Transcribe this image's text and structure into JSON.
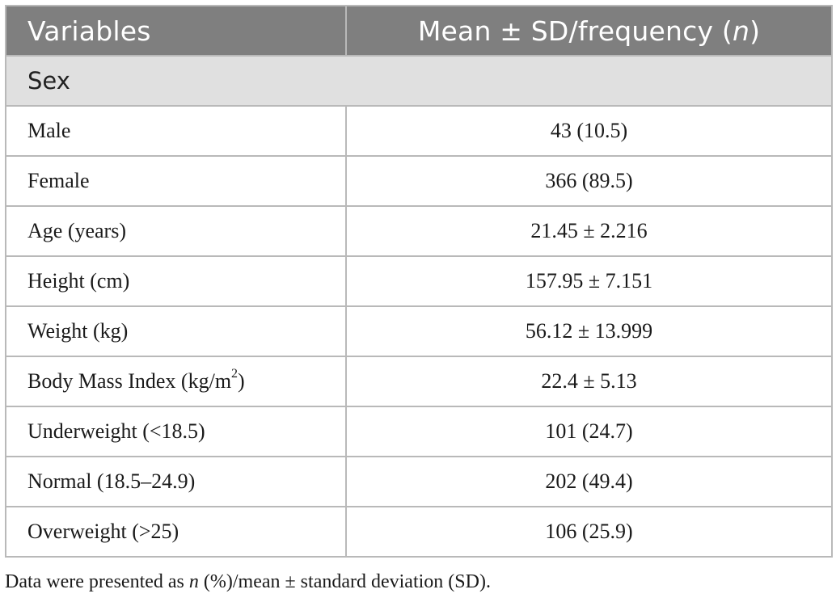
{
  "table": {
    "header": {
      "variables": "Variables",
      "stat_prefix": "Mean ± SD/frequency (",
      "stat_n": "n",
      "stat_suffix": ")"
    },
    "section_sex": "Sex",
    "rows": [
      {
        "label": "Male",
        "value": "43 (10.5)"
      },
      {
        "label": "Female",
        "value": "366 (89.5)"
      },
      {
        "label": "Age (years)",
        "value": "21.45 ± 2.216"
      },
      {
        "label": "Height (cm)",
        "value": "157.95 ± 7.151"
      },
      {
        "label": "Weight (kg)",
        "value": "56.12 ± 13.999"
      },
      {
        "label_prefix": "Body Mass Index (kg/m",
        "label_sup": "2",
        "label_suffix": ")",
        "value": "22.4 ± 5.13"
      },
      {
        "label": "Underweight (<18.5)",
        "value": "101 (24.7)"
      },
      {
        "label": "Normal (18.5–24.9)",
        "value": "202 (49.4)"
      },
      {
        "label": "Overweight (>25)",
        "value": "106 (25.9)"
      }
    ]
  },
  "footnote": {
    "prefix": "Data were presented as ",
    "n": "n",
    "suffix": " (%)/mean ± standard deviation (SD)."
  }
}
